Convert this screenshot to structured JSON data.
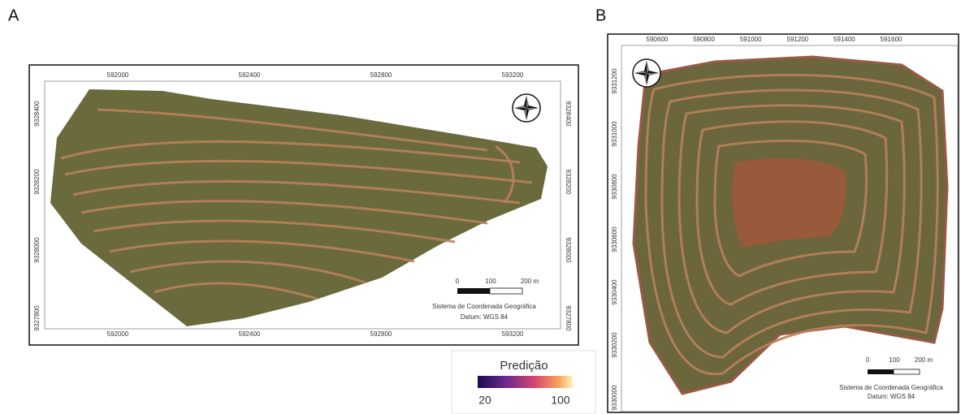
{
  "panels": [
    {
      "label": "A",
      "top_ticks": [
        "592000",
        "592400",
        "592800",
        "593200"
      ],
      "bottom_ticks": [
        "592000",
        "592400",
        "592800",
        "593200"
      ],
      "left_ticks": [
        "9328400",
        "9328200",
        "9328000",
        "9327800"
      ],
      "right_ticks": [
        "9328400",
        "9328200",
        "9328000",
        "9327800"
      ],
      "scale_labels": [
        "0",
        "100",
        "200 m"
      ],
      "crs": "Sistema de Coordenada Geográfica",
      "datum": "Datum: WGS 84"
    },
    {
      "label": "B",
      "top_ticks": [
        "590600",
        "590800",
        "591000",
        "591200",
        "591400",
        "591600"
      ],
      "left_ticks": [
        "9331200",
        "9331000",
        "9330800",
        "9330600",
        "9330400",
        "9330200",
        "9330000"
      ],
      "scale_labels": [
        "0",
        "100",
        "200 m"
      ],
      "crs": "Sistema de Coordenada Geográfica",
      "datum": "Datum: WGS 84"
    }
  ],
  "legend": {
    "title": "Predição",
    "min": "20",
    "max": "100"
  }
}
